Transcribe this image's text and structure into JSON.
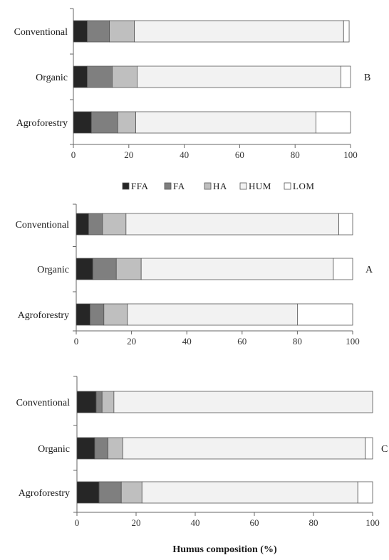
{
  "chart_data": [
    {
      "type": "bar",
      "stacked": true,
      "orientation": "horizontal",
      "panel_label": "B",
      "categories": [
        "Conventional",
        "Organic",
        "Agroforestry"
      ],
      "series": [
        {
          "name": "FFA",
          "values": [
            5,
            5,
            6.5
          ]
        },
        {
          "name": "FA",
          "values": [
            8,
            9,
            9.5
          ]
        },
        {
          "name": "HA",
          "values": [
            9,
            9,
            6.5
          ]
        },
        {
          "name": "HUM",
          "values": [
            75.5,
            73.5,
            65
          ]
        },
        {
          "name": "LOM",
          "values": [
            2,
            3.5,
            12.5
          ]
        }
      ],
      "xticks": [
        "0",
        "20",
        "40",
        "60",
        "80",
        "100"
      ],
      "xlim": [
        0,
        100
      ]
    },
    {
      "type": "bar",
      "stacked": true,
      "orientation": "horizontal",
      "panel_label": "A",
      "categories": [
        "Conventional",
        "Organic",
        "Agroforestry"
      ],
      "series": [
        {
          "name": "FFA",
          "values": [
            4.5,
            6,
            5
          ]
        },
        {
          "name": "FA",
          "values": [
            5,
            8.5,
            5
          ]
        },
        {
          "name": "HA",
          "values": [
            8.5,
            9,
            8.5
          ]
        },
        {
          "name": "HUM",
          "values": [
            77,
            69.5,
            61.5
          ]
        },
        {
          "name": "LOM",
          "values": [
            5,
            7,
            20
          ]
        }
      ],
      "xticks": [
        "0",
        "20",
        "40",
        "60",
        "80",
        "100"
      ],
      "xlim": [
        0,
        100
      ]
    },
    {
      "type": "bar",
      "stacked": true,
      "orientation": "horizontal",
      "panel_label": "C",
      "categories": [
        "Conventional",
        "Organic",
        "Agroforestry"
      ],
      "series": [
        {
          "name": "FFA",
          "values": [
            6.5,
            6,
            7.5
          ]
        },
        {
          "name": "FA",
          "values": [
            2,
            4.5,
            7.5
          ]
        },
        {
          "name": "HA",
          "values": [
            4,
            5,
            7
          ]
        },
        {
          "name": "HUM",
          "values": [
            87.5,
            82,
            73
          ]
        },
        {
          "name": "LOM",
          "values": [
            0,
            2.5,
            5
          ]
        }
      ],
      "xticks": [
        "0",
        "20",
        "40",
        "60",
        "80",
        "100"
      ],
      "xlim": [
        0,
        100
      ],
      "xlabel": "Humus composition (%)"
    }
  ],
  "legend": [
    {
      "name": "FFA",
      "color": "#262626"
    },
    {
      "name": "FA",
      "color": "#7f7f7f"
    },
    {
      "name": "HA",
      "color": "#bfbfbf"
    },
    {
      "name": "HUM",
      "color": "#f2f2f2"
    },
    {
      "name": "LOM",
      "color": "#ffffff"
    }
  ]
}
